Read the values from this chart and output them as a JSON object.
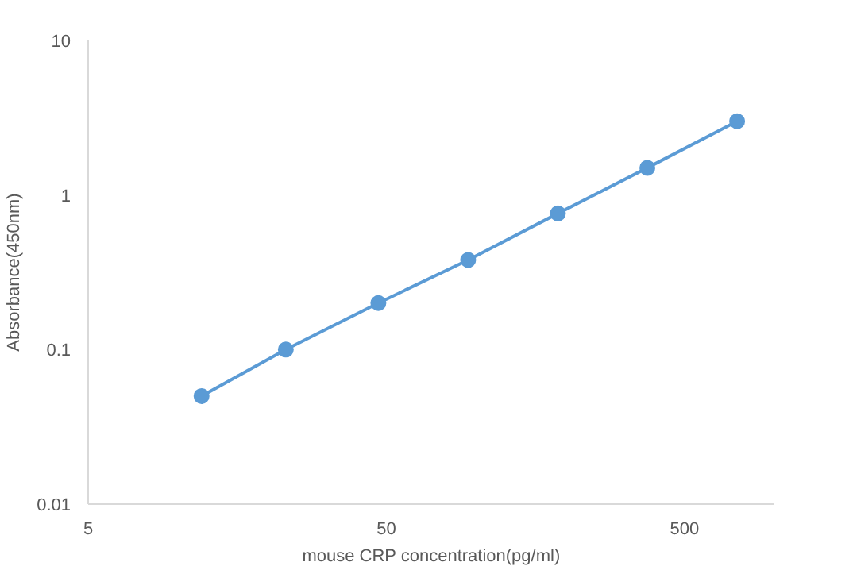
{
  "chart_data": {
    "type": "line",
    "xlabel": "mouse CRP concentration(pg/ml)",
    "ylabel": "Absorbance(450nm)",
    "x": [
      12,
      23,
      47,
      94,
      188,
      375,
      750
    ],
    "series": [
      {
        "color": "#5b9bd5",
        "values": [
          0.05,
          0.1,
          0.2,
          0.38,
          0.76,
          1.5,
          3
        ]
      }
    ],
    "log": "xy",
    "xlim": [
      5,
      1000
    ],
    "ylim": [
      0.01,
      10
    ],
    "xticks": [
      5,
      50,
      500
    ],
    "yticks": [
      0.01,
      0.1,
      1,
      10
    ],
    "grid": false,
    "marker": "circle",
    "line_style": "solid"
  }
}
